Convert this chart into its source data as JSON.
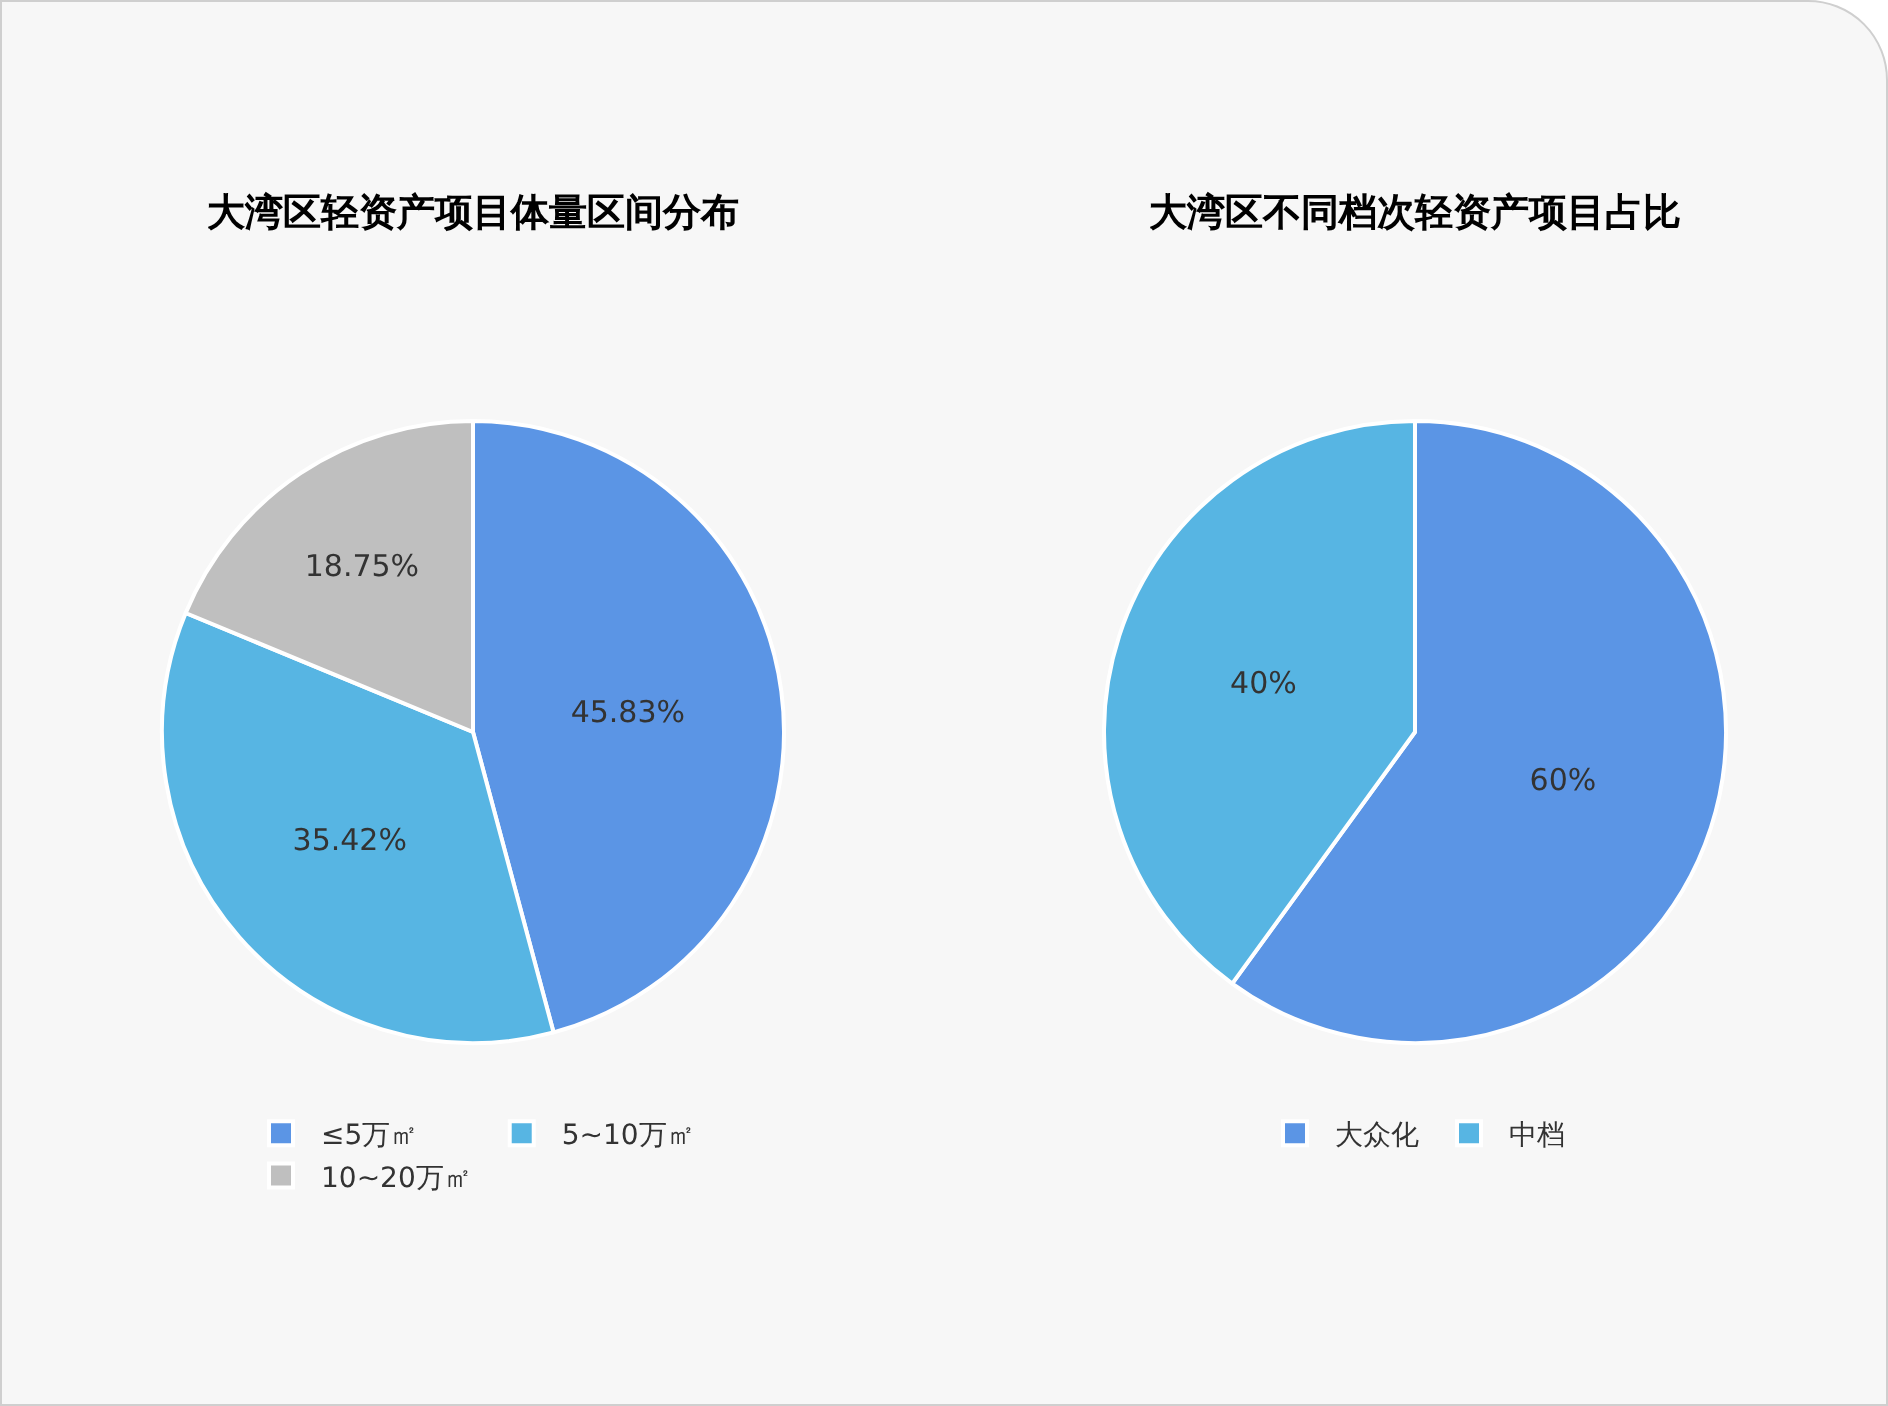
{
  "chart_data": [
    {
      "type": "pie",
      "title": "大湾区轻资产项目体量区间分布",
      "categories": [
        "≤5万㎡",
        "5~10万㎡",
        "10~20万㎡"
      ],
      "values": [
        45.83,
        35.42,
        18.75
      ],
      "colors": [
        "#5b95e5",
        "#57b5e3",
        "#bfbfbf"
      ],
      "value_labels": [
        "45.83%",
        "35.42%",
        "18.75%"
      ],
      "legend": "bottom"
    },
    {
      "type": "pie",
      "title": "大湾区不同档次轻资产项目占比",
      "categories": [
        "大众化",
        "中档"
      ],
      "values": [
        60,
        40
      ],
      "colors": [
        "#5b95e5",
        "#57b5e3"
      ],
      "value_labels": [
        "60%",
        "40%"
      ],
      "legend": "bottom"
    }
  ]
}
